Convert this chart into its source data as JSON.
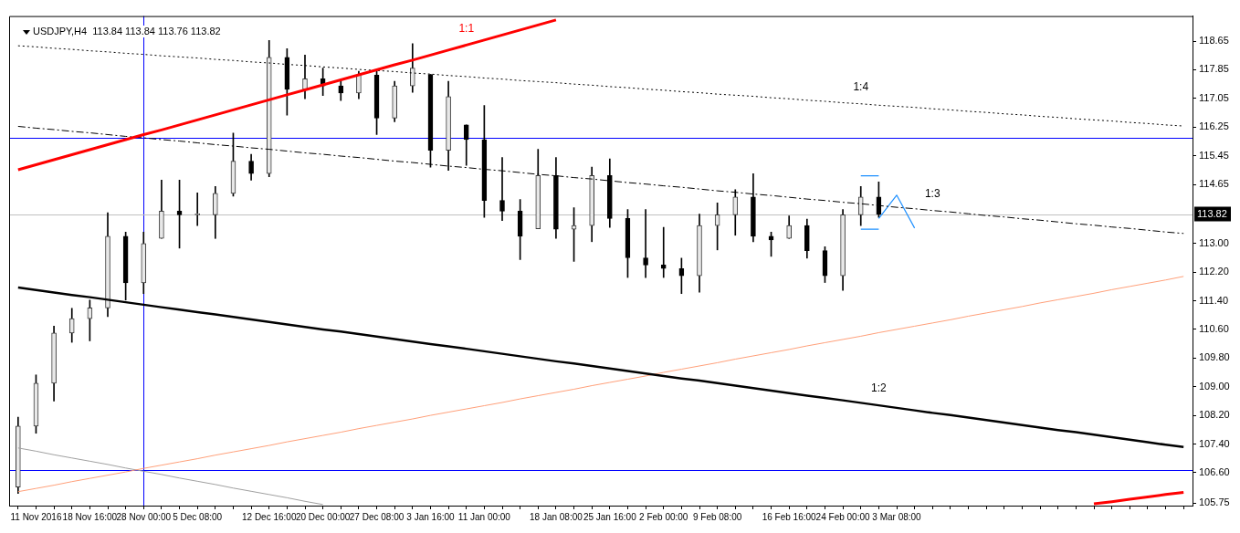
{
  "chart_data": {
    "type": "candlestick",
    "title": "USDJPY,H4  113.84 113.84 113.76 113.82",
    "categories": [
      null,
      "11 Nov 2016",
      null,
      null,
      "18 Nov 16:00",
      null,
      null,
      "28 Nov 00:00",
      null,
      null,
      "5 Dec 08:00",
      null,
      null,
      null,
      "12 Dec 16:00",
      null,
      null,
      "20 Dec 00:00",
      null,
      null,
      "27 Dec 08:00",
      null,
      null,
      "3 Jan 16:00",
      null,
      null,
      "11 Jan 00:00",
      null,
      null,
      null,
      "18 Jan 08:00",
      null,
      null,
      "25 Jan 16:00",
      null,
      null,
      "2 Feb 00:00",
      null,
      null,
      "9 Feb 08:00",
      null,
      null,
      null,
      "16 Feb 16:00",
      null,
      null,
      "24 Feb 00:00",
      null,
      null,
      "3 Mar 08:00",
      null,
      null,
      null,
      null,
      null,
      null,
      null,
      null,
      null,
      null,
      null,
      null,
      null,
      null,
      null,
      null
    ],
    "ohlc": [
      [
        106.2,
        108.15,
        106.02,
        107.9
      ],
      [
        107.9,
        109.33,
        107.7,
        109.1
      ],
      [
        109.1,
        110.69,
        108.6,
        110.5
      ],
      [
        110.5,
        111.19,
        110.24,
        110.9
      ],
      [
        110.9,
        111.42,
        110.28,
        111.2
      ],
      [
        111.2,
        113.86,
        110.96,
        113.2
      ],
      [
        113.2,
        113.32,
        111.42,
        111.9
      ],
      [
        111.9,
        113.32,
        111.6,
        113.0
      ],
      [
        113.14,
        114.77,
        113.14,
        113.9
      ],
      [
        113.9,
        114.77,
        112.87,
        113.8
      ],
      [
        113.8,
        114.41,
        113.5,
        113.8
      ],
      [
        113.8,
        114.59,
        113.14,
        114.4
      ],
      [
        114.4,
        116.08,
        114.32,
        115.3
      ],
      [
        115.3,
        115.49,
        114.77,
        114.95
      ],
      [
        114.95,
        118.67,
        114.86,
        118.2
      ],
      [
        118.2,
        118.44,
        116.58,
        117.3
      ],
      [
        117.3,
        118.26,
        117.04,
        117.6
      ],
      [
        117.6,
        117.9,
        117.13,
        117.4
      ],
      [
        117.4,
        117.58,
        116.99,
        117.2
      ],
      [
        117.2,
        117.81,
        117.04,
        117.7
      ],
      [
        117.7,
        117.81,
        116.04,
        116.5
      ],
      [
        116.5,
        117.53,
        116.4,
        117.4
      ],
      [
        117.4,
        118.58,
        117.22,
        117.9
      ],
      [
        117.72,
        117.72,
        115.13,
        115.6
      ],
      [
        115.6,
        117.53,
        115.04,
        117.1
      ],
      [
        116.31,
        116.31,
        115.18,
        115.9
      ],
      [
        115.9,
        116.85,
        113.73,
        114.2
      ],
      [
        114.2,
        115.4,
        113.64,
        113.9
      ],
      [
        113.9,
        114.23,
        112.55,
        113.2
      ],
      [
        113.41,
        115.63,
        113.41,
        114.9
      ],
      [
        114.9,
        115.4,
        113.14,
        113.4
      ],
      [
        113.4,
        114.0,
        112.5,
        113.5
      ],
      [
        113.5,
        115.13,
        113.05,
        114.9
      ],
      [
        114.9,
        115.36,
        113.45,
        113.7
      ],
      [
        113.7,
        113.95,
        112.05,
        112.6
      ],
      [
        112.6,
        113.95,
        112.05,
        112.4
      ],
      [
        112.4,
        113.45,
        112.05,
        112.3
      ],
      [
        112.3,
        112.59,
        111.6,
        112.1
      ],
      [
        112.1,
        113.82,
        111.64,
        113.5
      ],
      [
        113.5,
        114.13,
        112.82,
        113.8
      ],
      [
        113.8,
        114.5,
        113.23,
        114.3
      ],
      [
        114.3,
        114.95,
        113.05,
        113.2
      ],
      [
        113.2,
        113.32,
        112.64,
        113.1
      ],
      [
        113.14,
        113.77,
        113.14,
        113.5
      ],
      [
        113.5,
        113.68,
        112.59,
        112.8
      ],
      [
        112.8,
        112.91,
        111.91,
        112.1
      ],
      [
        112.1,
        113.95,
        111.69,
        113.8
      ],
      [
        113.8,
        114.59,
        113.5,
        114.3
      ],
      [
        114.3,
        114.72,
        113.73,
        113.82
      ],
      null,
      null,
      null,
      null,
      null,
      null,
      null,
      null,
      null,
      null,
      null,
      null,
      null,
      null,
      null,
      null,
      null
    ],
    "series": [
      {
        "type": "line",
        "name": "1:1",
        "color": "#ff0000",
        "values": [
          115.06,
          115.2,
          115.34,
          115.48,
          115.62,
          115.76,
          115.9,
          116.04,
          116.17,
          116.31,
          116.45,
          116.59,
          116.73,
          116.87,
          117.01,
          117.15,
          117.29,
          117.43,
          117.57,
          117.71,
          117.85,
          117.99,
          118.12,
          118.26,
          118.4,
          118.54,
          118.68,
          118.82,
          118.96,
          119.1,
          119.24,
          null,
          null,
          null,
          null,
          null,
          null,
          null,
          null,
          null,
          null,
          null,
          null,
          null,
          null,
          null,
          null,
          null,
          null,
          null,
          null,
          null,
          null,
          null,
          null,
          null,
          null,
          null,
          null,
          null,
          null,
          null,
          null,
          null,
          null,
          null
        ]
      },
      {
        "type": "line",
        "color": "#ff0000",
        "values": [
          null,
          null,
          null,
          null,
          null,
          null,
          null,
          null,
          null,
          null,
          null,
          null,
          null,
          null,
          null,
          null,
          null,
          null,
          null,
          null,
          null,
          null,
          null,
          null,
          null,
          null,
          null,
          null,
          null,
          null,
          null,
          null,
          null,
          null,
          null,
          null,
          null,
          null,
          null,
          null,
          null,
          null,
          null,
          null,
          null,
          null,
          null,
          null,
          null,
          null,
          null,
          null,
          null,
          null,
          null,
          null,
          null,
          null,
          null,
          null,
          105.73,
          105.79,
          105.86,
          105.92,
          105.99,
          106.05
        ]
      },
      {
        "type": "line",
        "name": "1:4",
        "color": "#000000",
        "line_style": "dotted",
        "values": [
          118.52,
          118.49,
          118.45,
          118.42,
          118.38,
          118.35,
          118.31,
          118.28,
          118.24,
          118.21,
          118.18,
          118.14,
          118.11,
          118.07,
          118.04,
          118.0,
          117.97,
          117.93,
          117.9,
          117.86,
          117.83,
          117.8,
          117.76,
          117.73,
          117.69,
          117.66,
          117.62,
          117.59,
          117.55,
          117.52,
          117.49,
          117.45,
          117.42,
          117.38,
          117.35,
          117.31,
          117.28,
          117.24,
          117.21,
          117.17,
          117.14,
          117.11,
          117.07,
          117.04,
          117.0,
          116.97,
          116.93,
          116.9,
          116.86,
          116.83,
          116.8,
          116.76,
          116.73,
          116.69,
          116.66,
          116.62,
          116.59,
          116.55,
          116.52,
          116.48,
          116.45,
          116.42,
          116.38,
          116.35,
          116.31,
          116.28
        ]
      },
      {
        "type": "line",
        "name": "1:3",
        "color": "#000000",
        "line_style": "dashed",
        "values": [
          116.27,
          116.22,
          116.18,
          116.13,
          116.09,
          116.04,
          115.99,
          115.95,
          115.9,
          115.86,
          115.81,
          115.76,
          115.72,
          115.67,
          115.63,
          115.58,
          115.53,
          115.49,
          115.44,
          115.4,
          115.35,
          115.3,
          115.26,
          115.21,
          115.16,
          115.12,
          115.07,
          115.03,
          114.98,
          114.93,
          114.89,
          114.84,
          114.8,
          114.75,
          114.7,
          114.66,
          114.61,
          114.57,
          114.52,
          114.47,
          114.43,
          114.38,
          114.34,
          114.29,
          114.24,
          114.2,
          114.15,
          114.11,
          114.06,
          114.01,
          113.97,
          113.92,
          113.88,
          113.83,
          113.78,
          113.74,
          113.69,
          113.65,
          113.6,
          113.55,
          113.51,
          113.46,
          113.42,
          113.37,
          113.32,
          113.28
        ]
      },
      {
        "type": "line",
        "name": "1:2",
        "color": "#000000",
        "values": [
          111.77,
          111.7,
          111.63,
          111.56,
          111.5,
          111.43,
          111.36,
          111.29,
          111.22,
          111.15,
          111.08,
          111.02,
          110.95,
          110.88,
          110.81,
          110.74,
          110.67,
          110.6,
          110.54,
          110.47,
          110.4,
          110.33,
          110.26,
          110.19,
          110.13,
          110.06,
          109.99,
          109.92,
          109.85,
          109.78,
          109.71,
          109.65,
          109.58,
          109.51,
          109.44,
          109.37,
          109.3,
          109.23,
          109.17,
          109.1,
          109.03,
          108.96,
          108.89,
          108.82,
          108.75,
          108.69,
          108.62,
          108.55,
          108.48,
          108.41,
          108.34,
          108.27,
          108.21,
          108.14,
          108.07,
          108.0,
          107.93,
          107.86,
          107.79,
          107.73,
          107.66,
          107.59,
          107.52,
          107.45,
          107.38,
          107.32
        ]
      },
      {
        "type": "line",
        "color": "#ffa07a",
        "values": [
          106.07,
          106.16,
          106.25,
          106.35,
          106.44,
          106.53,
          106.62,
          106.72,
          106.81,
          106.9,
          106.99,
          107.09,
          107.18,
          107.27,
          107.36,
          107.46,
          107.55,
          107.64,
          107.73,
          107.83,
          107.92,
          108.01,
          108.1,
          108.2,
          108.29,
          108.38,
          108.47,
          108.56,
          108.66,
          108.75,
          108.84,
          108.93,
          109.03,
          109.12,
          109.21,
          109.3,
          109.4,
          109.49,
          109.58,
          109.67,
          109.77,
          109.86,
          109.95,
          110.04,
          110.14,
          110.23,
          110.32,
          110.41,
          110.51,
          110.6,
          110.69,
          110.78,
          110.87,
          110.97,
          111.06,
          111.15,
          111.24,
          111.34,
          111.43,
          111.52,
          111.61,
          111.71,
          111.8,
          111.89,
          111.98,
          112.08
        ]
      },
      {
        "type": "line",
        "color": "#a0a0a0",
        "values": [
          107.29,
          107.2,
          107.1,
          107.01,
          106.92,
          106.83,
          106.73,
          106.64,
          106.55,
          106.45,
          106.36,
          106.27,
          106.17,
          106.08,
          105.99,
          105.9,
          105.8,
          105.71,
          null,
          null,
          null,
          null,
          null,
          null,
          null,
          null,
          null,
          null,
          null,
          null,
          null,
          null,
          null,
          null,
          null,
          null,
          null,
          null,
          null,
          null,
          null,
          null,
          null,
          null,
          null,
          null,
          null,
          null,
          null,
          null,
          null,
          null,
          null,
          null,
          null,
          null,
          null,
          null,
          null,
          null,
          null,
          null,
          null,
          null,
          null,
          null
        ]
      },
      {
        "type": "line",
        "color": "#1e90ff",
        "values": [
          null,
          null,
          null,
          null,
          null,
          null,
          null,
          null,
          null,
          null,
          null,
          null,
          null,
          null,
          null,
          null,
          null,
          null,
          null,
          null,
          null,
          null,
          null,
          null,
          null,
          null,
          null,
          null,
          null,
          null,
          null,
          null,
          null,
          null,
          null,
          null,
          null,
          null,
          null,
          null,
          null,
          null,
          null,
          null,
          null,
          null,
          null,
          114.89,
          114.89,
          null,
          null,
          null,
          null,
          null,
          null,
          null,
          null,
          null,
          null,
          null,
          null,
          null,
          null,
          null,
          null,
          null
        ]
      },
      {
        "type": "line",
        "color": "#1e90ff",
        "values": [
          null,
          null,
          null,
          null,
          null,
          null,
          null,
          null,
          null,
          null,
          null,
          null,
          null,
          null,
          null,
          null,
          null,
          null,
          null,
          null,
          null,
          null,
          null,
          null,
          null,
          null,
          null,
          null,
          null,
          null,
          null,
          null,
          null,
          null,
          null,
          null,
          null,
          null,
          null,
          null,
          null,
          null,
          null,
          null,
          null,
          null,
          null,
          113.4,
          113.4,
          null,
          null,
          null,
          null,
          null,
          null,
          null,
          null,
          null,
          null,
          null,
          null,
          null,
          null,
          null,
          null,
          null
        ]
      },
      {
        "type": "line",
        "color": "#1e90ff",
        "values": [
          null,
          null,
          null,
          null,
          null,
          null,
          null,
          null,
          null,
          null,
          null,
          null,
          null,
          null,
          null,
          null,
          null,
          null,
          null,
          null,
          null,
          null,
          null,
          null,
          null,
          null,
          null,
          null,
          null,
          null,
          null,
          null,
          null,
          null,
          null,
          null,
          null,
          null,
          null,
          null,
          null,
          null,
          null,
          null,
          null,
          null,
          null,
          null,
          113.7,
          114.35,
          113.43,
          null,
          null,
          null,
          null,
          null,
          null,
          null,
          null,
          null,
          null,
          null,
          null,
          null,
          null,
          null
        ]
      }
    ],
    "ref_lines": [
      {
        "axis": "y",
        "value": 115.95,
        "color": "#0000ff"
      },
      {
        "axis": "y",
        "value": 106.67,
        "color": "#0000ff"
      },
      {
        "axis": "x",
        "value": "28 Nov 00:00",
        "color": "#0000ff"
      },
      {
        "axis": "y",
        "value": 113.82,
        "label": "113.82",
        "color": "#c0c0c0"
      }
    ],
    "ylim": [
      105.68,
      119.35
    ],
    "yticks": [
      118.65,
      117.85,
      117.05,
      116.25,
      115.45,
      114.65,
      {
        "value": 113,
        "label": "113.00"
      },
      {
        "value": 112.2,
        "label": "112.20"
      },
      {
        "value": 111.4,
        "label": "111.40"
      },
      {
        "value": 110.6,
        "label": "110.60"
      },
      {
        "value": 109.8,
        "label": "109.80"
      },
      {
        "value": 109,
        "label": "109.00"
      },
      {
        "value": 108.2,
        "label": "108.20"
      },
      {
        "value": 107.4,
        "label": "107.40"
      },
      {
        "value": 106.6,
        "label": "106.60"
      },
      105.75
    ],
    "marker": "none"
  }
}
